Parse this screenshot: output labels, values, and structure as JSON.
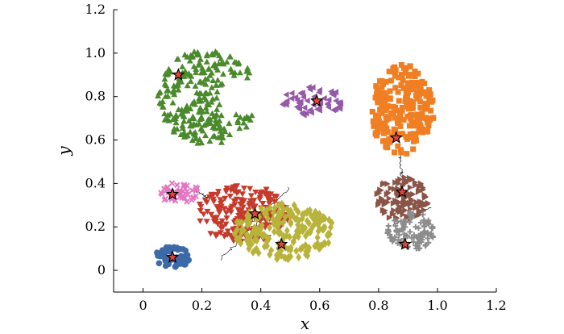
{
  "chart_data": {
    "type": "scatter",
    "xlabel": "x",
    "ylabel": "y",
    "xlim": [
      -0.1,
      1.2
    ],
    "ylim": [
      -0.1,
      1.2
    ],
    "xticks": [
      "0",
      "0.2",
      "0.4",
      "0.6",
      "0.8",
      "1.0",
      "1.2"
    ],
    "yticks": [
      "0",
      "0.2",
      "0.4",
      "0.6",
      "0.8",
      "1.0",
      "1.2"
    ],
    "xtick_values": [
      0,
      0.2,
      0.4,
      0.6,
      0.8,
      1.0,
      1.2
    ],
    "ytick_values": [
      0,
      0.2,
      0.4,
      0.6,
      0.8,
      1.0,
      1.2
    ],
    "grid": false,
    "legend": "none",
    "series": [
      {
        "marker": "triangle-up",
        "color": "#4a8a2c",
        "center": [
          0.12,
          0.9
        ],
        "region": {
          "cx": 0.22,
          "cy": 0.8,
          "rx": 0.17,
          "ry": 0.22
        },
        "count": 260
      },
      {
        "marker": "triangle-left",
        "color": "#9559a8",
        "center": [
          0.59,
          0.78
        ],
        "region": {
          "cx": 0.58,
          "cy": 0.78,
          "rx": 0.11,
          "ry": 0.07
        },
        "count": 60
      },
      {
        "marker": "square",
        "color": "#f07f24",
        "center": [
          0.86,
          0.61
        ],
        "region": {
          "cx": 0.88,
          "cy": 0.74,
          "rx": 0.11,
          "ry": 0.21
        },
        "count": 230
      },
      {
        "marker": "x",
        "color": "#e377c2",
        "center": [
          0.1,
          0.35
        ],
        "region": {
          "cx": 0.12,
          "cy": 0.36,
          "rx": 0.07,
          "ry": 0.05
        },
        "count": 50
      },
      {
        "marker": "triangle-down",
        "color": "#c63a2c",
        "center": [
          0.38,
          0.26
        ],
        "region": {
          "cx": 0.34,
          "cy": 0.26,
          "rx": 0.16,
          "ry": 0.13
        },
        "count": 220
      },
      {
        "marker": "diamond",
        "color": "#b8b33a",
        "center": [
          0.47,
          0.12
        ],
        "region": {
          "cx": 0.48,
          "cy": 0.18,
          "rx": 0.17,
          "ry": 0.13
        },
        "count": 220
      },
      {
        "marker": "triangle-right",
        "color": "#8a5447",
        "center": [
          0.88,
          0.36
        ],
        "region": {
          "cx": 0.88,
          "cy": 0.33,
          "rx": 0.09,
          "ry": 0.1
        },
        "count": 110
      },
      {
        "marker": "plus",
        "color": "#8c8c8c",
        "center": [
          0.89,
          0.12
        ],
        "region": {
          "cx": 0.91,
          "cy": 0.18,
          "rx": 0.08,
          "ry": 0.09
        },
        "count": 110
      },
      {
        "marker": "circle",
        "color": "#3c6aa8",
        "center": [
          0.1,
          0.06
        ],
        "region": {
          "cx": 0.1,
          "cy": 0.06,
          "rx": 0.06,
          "ry": 0.05
        },
        "count": 60
      }
    ],
    "links": [
      {
        "from": [
          0.18,
          0.36
        ],
        "to": [
          0.24,
          0.33
        ]
      },
      {
        "from": [
          0.26,
          0.05
        ],
        "to": [
          0.42,
          0.26
        ]
      },
      {
        "from": [
          0.32,
          0.16
        ],
        "to": [
          0.5,
          0.38
        ]
      },
      {
        "from": [
          0.85,
          0.21
        ],
        "to": [
          0.98,
          0.29
        ]
      },
      {
        "from": [
          0.87,
          0.55
        ],
        "to": [
          0.88,
          0.42
        ]
      }
    ]
  }
}
